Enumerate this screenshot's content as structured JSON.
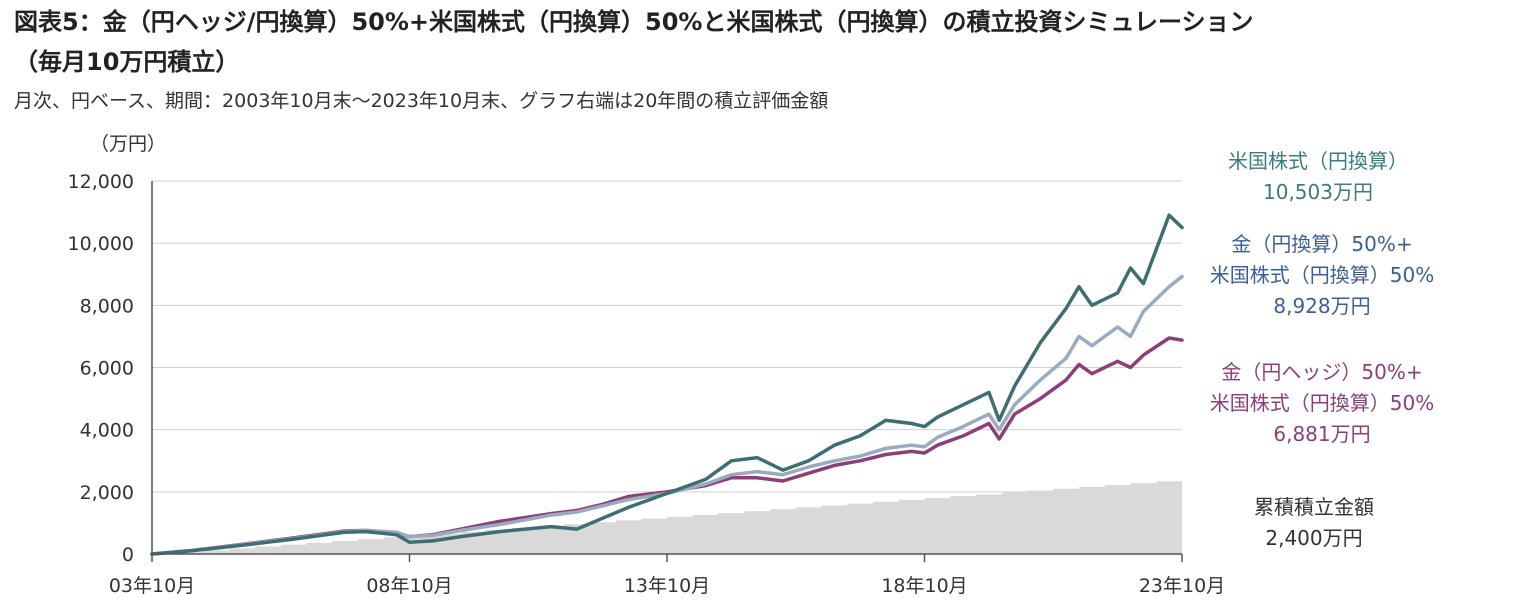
{
  "header": {
    "title_line1": "図表5：金（円ヘッジ/円換算）50%+米国株式（円換算）50%と米国株式（円換算）の積立投資シミュレーション",
    "title_line2": "（毎月10万円積立）",
    "subtitle": "月次、円ベース、期間：2003年10月末～2023年10月末、グラフ右端は20年間の積立評価金額"
  },
  "colors": {
    "us_stock": "#3f6e72",
    "gold_yen_50": "#9aaabf",
    "gold_hedge_50": "#8b3f79",
    "cumulative": "#d9d9d9",
    "label_us": "#3f7a7a",
    "label_gold_yen": "#3d5e95",
    "label_gold_hedge": "#8b3f79",
    "label_cum": "#333333"
  },
  "chart_data": {
    "type": "line",
    "unit_label": "（万円）",
    "x_ticks": [
      "03年10月",
      "08年10月",
      "13年10月",
      "18年10月",
      "23年10月"
    ],
    "x_range": [
      2003.75,
      2023.75
    ],
    "ylim": [
      0,
      12000
    ],
    "y_ticks": [
      0,
      2000,
      4000,
      6000,
      8000,
      10000,
      12000
    ],
    "y_tick_labels": [
      "0",
      "2,000",
      "4,000",
      "6,000",
      "8,000",
      "10,000",
      "12,000"
    ],
    "grid": true,
    "series": [
      {
        "key": "us_stock",
        "label_lines": [
          "米国株式（円換算）",
          "10,503万円"
        ],
        "x": [
          2003.75,
          2004.5,
          2005.5,
          2006.5,
          2007.5,
          2007.9,
          2008.5,
          2008.75,
          2009.2,
          2009.75,
          2010.5,
          2011.5,
          2012.0,
          2012.5,
          2013.0,
          2013.75,
          2014.5,
          2015.0,
          2015.5,
          2016.0,
          2016.5,
          2017.0,
          2017.5,
          2018.0,
          2018.5,
          2018.75,
          2019.0,
          2019.5,
          2020.0,
          2020.2,
          2020.5,
          2021.0,
          2021.5,
          2021.75,
          2022.0,
          2022.5,
          2022.75,
          2023.0,
          2023.5,
          2023.75
        ],
        "values": [
          0,
          100,
          280,
          480,
          700,
          720,
          620,
          380,
          420,
          560,
          720,
          880,
          800,
          1150,
          1500,
          1950,
          2400,
          3000,
          3100,
          2700,
          3000,
          3500,
          3800,
          4300,
          4200,
          4100,
          4400,
          4800,
          5200,
          4300,
          5400,
          6800,
          7900,
          8600,
          8000,
          8400,
          9200,
          8700,
          10900,
          10503
        ]
      },
      {
        "key": "gold_yen_50",
        "label_lines": [
          "金（円換算）50%+",
          "米国株式（円換算）50%",
          "8,928万円"
        ],
        "x": [
          2003.75,
          2004.5,
          2005.5,
          2006.5,
          2007.5,
          2007.9,
          2008.5,
          2008.75,
          2009.2,
          2009.75,
          2010.5,
          2011.5,
          2012.0,
          2012.5,
          2013.0,
          2013.75,
          2014.5,
          2015.0,
          2015.5,
          2016.0,
          2016.5,
          2017.0,
          2017.5,
          2018.0,
          2018.5,
          2018.75,
          2019.0,
          2019.5,
          2020.0,
          2020.2,
          2020.5,
          2021.0,
          2021.5,
          2021.75,
          2022.0,
          2022.5,
          2022.75,
          2023.0,
          2023.5,
          2023.75
        ],
        "values": [
          0,
          110,
          300,
          500,
          720,
          760,
          700,
          560,
          600,
          760,
          950,
          1250,
          1350,
          1550,
          1750,
          1950,
          2250,
          2550,
          2650,
          2550,
          2800,
          3000,
          3150,
          3400,
          3500,
          3450,
          3750,
          4100,
          4500,
          4000,
          4800,
          5600,
          6300,
          7000,
          6700,
          7300,
          7000,
          7800,
          8600,
          8928
        ]
      },
      {
        "key": "gold_hedge_50",
        "label_lines": [
          "金（円ヘッジ）50%+",
          "米国株式（円換算）50%",
          "6,881万円"
        ],
        "x": [
          2003.75,
          2004.5,
          2005.5,
          2006.5,
          2007.5,
          2007.9,
          2008.5,
          2008.75,
          2009.2,
          2009.75,
          2010.5,
          2011.5,
          2012.0,
          2012.5,
          2013.0,
          2013.75,
          2014.5,
          2015.0,
          2015.5,
          2016.0,
          2016.5,
          2017.0,
          2017.5,
          2018.0,
          2018.5,
          2018.75,
          2019.0,
          2019.5,
          2020.0,
          2020.2,
          2020.5,
          2021.0,
          2021.5,
          2021.75,
          2022.0,
          2022.5,
          2022.75,
          2023.0,
          2023.5,
          2023.75
        ],
        "values": [
          0,
          110,
          310,
          520,
          740,
          760,
          680,
          560,
          620,
          800,
          1050,
          1300,
          1400,
          1600,
          1850,
          2000,
          2200,
          2450,
          2450,
          2350,
          2600,
          2850,
          3000,
          3200,
          3300,
          3250,
          3500,
          3800,
          4200,
          3700,
          4500,
          5000,
          5600,
          6100,
          5800,
          6200,
          6000,
          6400,
          6950,
          6881
        ]
      },
      {
        "key": "cumulative",
        "label_lines": [
          "累積積立金額",
          "2,400万円"
        ],
        "x": [
          2003.75,
          2023.75
        ],
        "values": [
          0,
          2400
        ]
      }
    ]
  }
}
